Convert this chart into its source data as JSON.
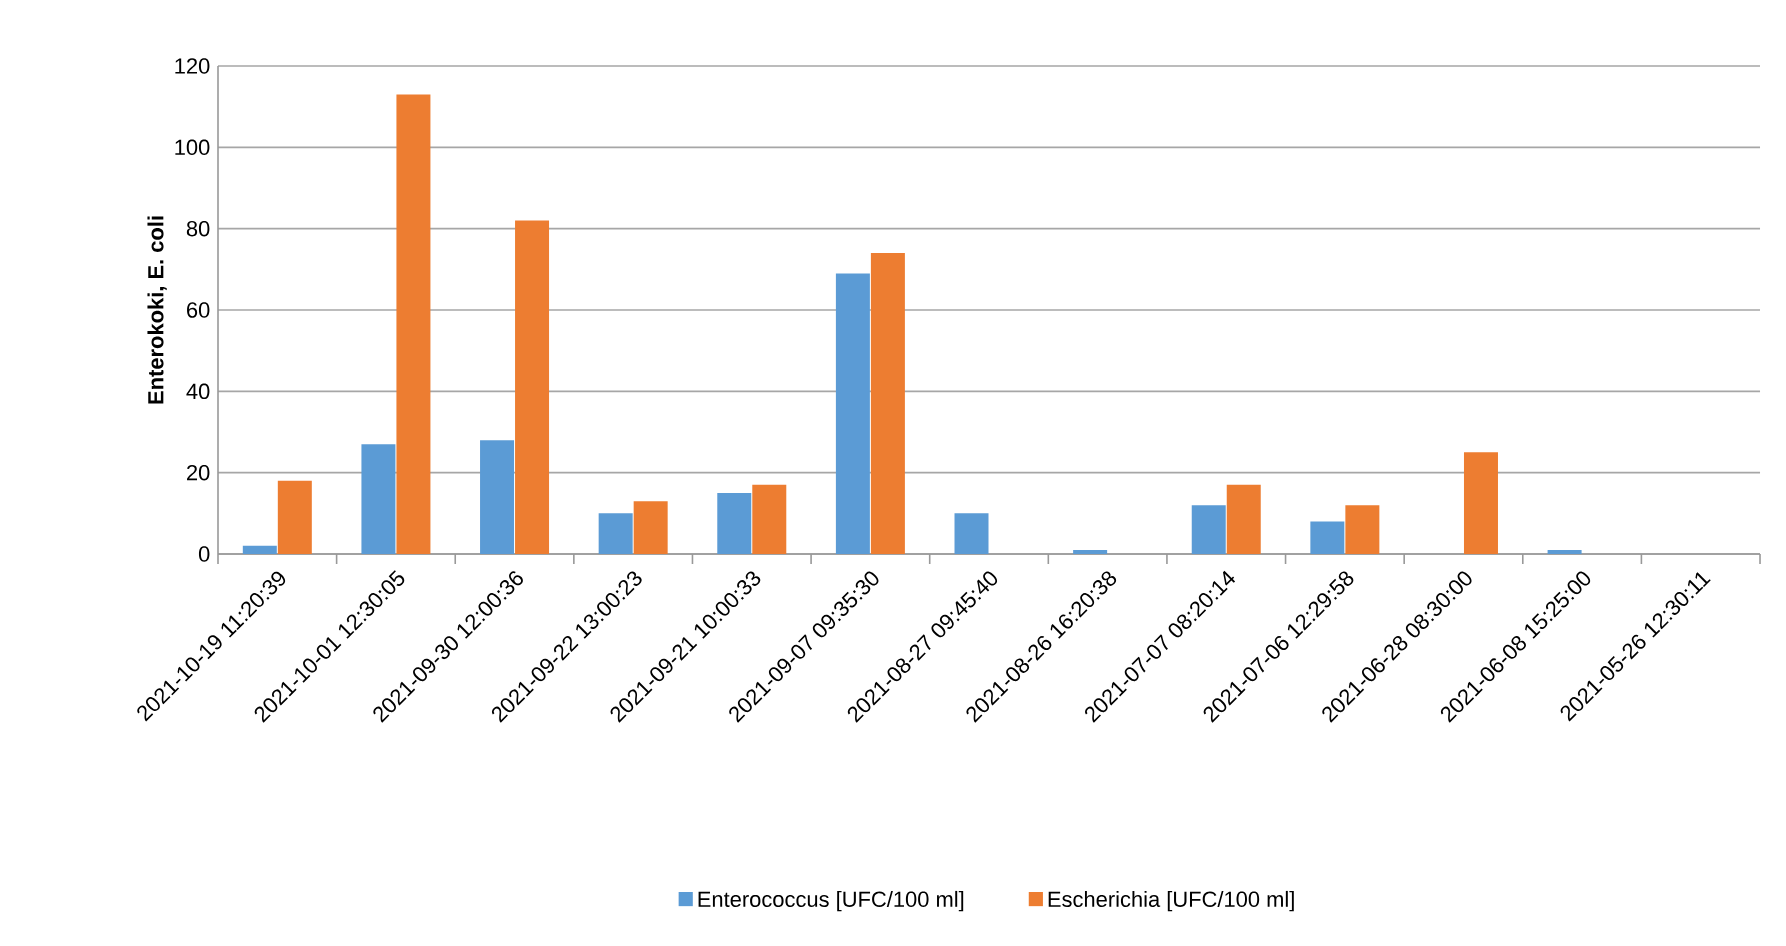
{
  "chart_data": {
    "type": "bar",
    "ylabel": "Enterokoki, E. coli",
    "categories": [
      "2021-10-19 11:20:39",
      "2021-10-01 12:30:05",
      "2021-09-30 12:00:36",
      "2021-09-22 13:00:23",
      "2021-09-21 10:00:33",
      "2021-09-07 09:35:30",
      "2021-08-27 09:45:40",
      "2021-08-26 16:20:38",
      "2021-07-07 08:20:14",
      "2021-07-06 12:29:58",
      "2021-06-28 08:30:00",
      "2021-06-08 15:25:00",
      "2021-05-26 12:30:11"
    ],
    "series": [
      {
        "name": "Enterococcus [UFC/100 ml]",
        "color": "#5b9bd5",
        "values": [
          2,
          27,
          28,
          10,
          15,
          69,
          10,
          1,
          12,
          8,
          0,
          1,
          0
        ]
      },
      {
        "name": "Escherichia [UFC/100 ml]",
        "color": "#ed7d31",
        "values": [
          18,
          113,
          82,
          13,
          17,
          74,
          0,
          0,
          17,
          12,
          25,
          0,
          0
        ]
      }
    ],
    "ylim": [
      0,
      120
    ],
    "yticks": [
      0,
      20,
      40,
      60,
      80,
      100,
      120
    ],
    "grid": "y",
    "legend": "bottom"
  }
}
